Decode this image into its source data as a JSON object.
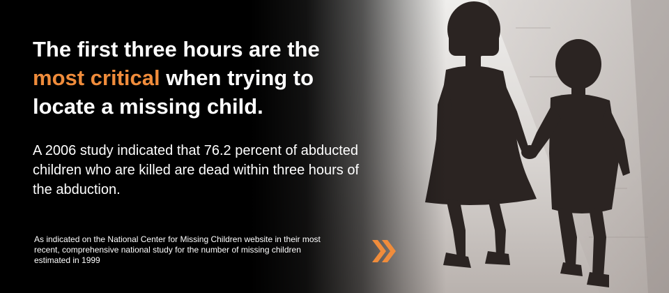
{
  "headline": {
    "before": "The first three hours are the ",
    "highlight": "most critical",
    "after": " when trying to locate a missing child."
  },
  "body": "A 2006 study indicated that 76.2 percent of abducted children who are killed are dead within three hours of the abduction.",
  "source": "As indicated on the National Center for Missing Children website in their most recent, comprehensive national study for the number of missing children estimated in 1999",
  "next_icon": "double-chevron-right-icon",
  "colors": {
    "accent": "#f08c3b",
    "background": "#000000",
    "text": "#ffffff"
  }
}
